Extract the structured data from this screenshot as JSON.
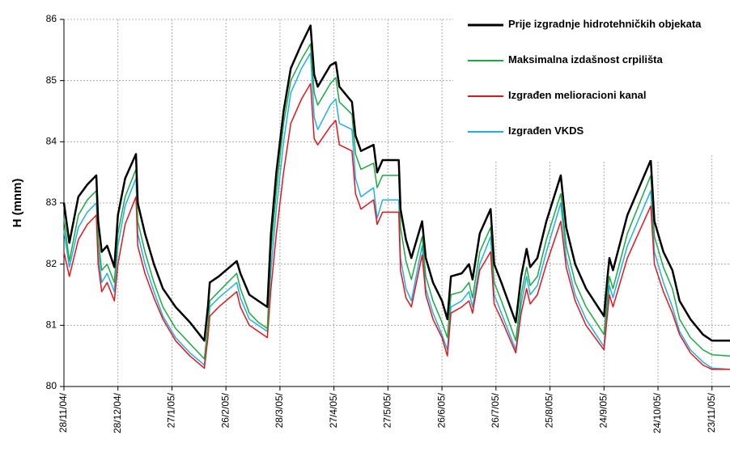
{
  "chart_data": {
    "type": "line",
    "y_label": "H (mnm)",
    "x": [
      0,
      3,
      8,
      13,
      18,
      19,
      21,
      24,
      28,
      30,
      34,
      40,
      41,
      45,
      50,
      55,
      62,
      70,
      78,
      80,
      81,
      86,
      96,
      98,
      103,
      108,
      113,
      115,
      118,
      122,
      126,
      132,
      137,
      139,
      141,
      148,
      151,
      153,
      160,
      162,
      165,
      172,
      174,
      177,
      186,
      187,
      190,
      193,
      199,
      201,
      205,
      210,
      213,
      215,
      221,
      225,
      227,
      231,
      237,
      239,
      243,
      251,
      254,
      257,
      259,
      263,
      268,
      276,
      279,
      284,
      290,
      300,
      302,
      303,
      305,
      313,
      326,
      328,
      333,
      338,
      342,
      348,
      355,
      360,
      370
    ],
    "xlim": [
      0,
      370
    ],
    "xticks": [
      {
        "value": 0,
        "label": "28/11/04/"
      },
      {
        "value": 30,
        "label": "28/12/04/"
      },
      {
        "value": 60,
        "label": "27/1/05/"
      },
      {
        "value": 90,
        "label": "26/2/05/"
      },
      {
        "value": 120,
        "label": "28/3/05/"
      },
      {
        "value": 150,
        "label": "27/4/05/"
      },
      {
        "value": 180,
        "label": "27/5/05/"
      },
      {
        "value": 210,
        "label": "26/6/05/"
      },
      {
        "value": 240,
        "label": "26/7/05/"
      },
      {
        "value": 270,
        "label": "25/8/05/"
      },
      {
        "value": 300,
        "label": "24/9/05/"
      },
      {
        "value": 330,
        "label": "24/10/05/"
      },
      {
        "value": 360,
        "label": "23/11/05/"
      }
    ],
    "ylim": [
      80,
      86
    ],
    "yticks": [
      80,
      81,
      82,
      83,
      84,
      85,
      86
    ],
    "grid": true,
    "legend": "top-right",
    "series": [
      {
        "name": "Prije izgradnje hidrotehničkih objekata",
        "color": "#000000",
        "width": 2.5,
        "values": [
          83.0,
          82.35,
          83.1,
          83.3,
          83.45,
          82.7,
          82.2,
          82.3,
          81.95,
          82.8,
          83.4,
          83.8,
          83.0,
          82.5,
          82.0,
          81.6,
          81.3,
          81.05,
          80.75,
          81.3,
          81.7,
          81.8,
          82.05,
          81.85,
          81.5,
          81.4,
          81.3,
          82.5,
          83.5,
          84.5,
          85.2,
          85.6,
          85.9,
          85.1,
          84.9,
          85.25,
          85.3,
          84.9,
          84.65,
          84.1,
          83.85,
          83.95,
          83.5,
          83.7,
          83.7,
          82.9,
          82.4,
          82.1,
          82.7,
          82.1,
          81.7,
          81.4,
          81.1,
          81.8,
          81.85,
          82.0,
          81.75,
          82.5,
          82.9,
          82.0,
          81.7,
          81.05,
          81.8,
          82.25,
          81.95,
          82.1,
          82.7,
          83.45,
          82.6,
          82.0,
          81.6,
          81.15,
          81.8,
          82.1,
          81.9,
          82.8,
          83.7,
          82.7,
          82.2,
          81.9,
          81.4,
          81.1,
          80.85,
          80.75,
          80.75
        ]
      },
      {
        "name": "Maksimalna izdašnost crpilišta",
        "color": "#1aab40",
        "width": 1.5,
        "values": [
          82.75,
          82.05,
          82.8,
          83.05,
          83.2,
          82.4,
          81.9,
          82.0,
          81.7,
          82.5,
          83.1,
          83.55,
          82.7,
          82.2,
          81.7,
          81.3,
          80.95,
          80.7,
          80.45,
          81.0,
          81.4,
          81.55,
          81.85,
          81.6,
          81.2,
          81.05,
          80.95,
          82.2,
          83.2,
          84.3,
          85.0,
          85.35,
          85.6,
          84.8,
          84.6,
          84.95,
          85.05,
          84.65,
          84.45,
          83.8,
          83.55,
          83.65,
          83.25,
          83.45,
          83.45,
          82.6,
          82.05,
          81.75,
          82.45,
          81.8,
          81.4,
          81.05,
          80.8,
          81.5,
          81.55,
          81.7,
          81.45,
          82.2,
          82.6,
          81.7,
          81.4,
          80.75,
          81.5,
          81.95,
          81.65,
          81.8,
          82.4,
          83.15,
          82.3,
          81.7,
          81.3,
          80.85,
          81.5,
          81.8,
          81.6,
          82.5,
          83.45,
          82.45,
          81.95,
          81.6,
          81.1,
          80.8,
          80.6,
          80.52,
          80.5
        ]
      },
      {
        "name": "Izgrađen melioracioni kanal",
        "color": "#e8141b",
        "width": 1.5,
        "values": [
          82.2,
          81.8,
          82.4,
          82.65,
          82.8,
          82.0,
          81.55,
          81.7,
          81.4,
          82.0,
          82.65,
          83.1,
          82.3,
          81.85,
          81.45,
          81.1,
          80.75,
          80.5,
          80.3,
          80.8,
          81.15,
          81.3,
          81.55,
          81.3,
          81.0,
          80.9,
          80.8,
          81.6,
          82.5,
          83.5,
          84.3,
          84.7,
          84.95,
          84.05,
          83.95,
          84.25,
          84.35,
          83.95,
          83.85,
          83.15,
          82.9,
          83.05,
          82.65,
          82.85,
          82.85,
          81.9,
          81.45,
          81.3,
          82.15,
          81.5,
          81.1,
          80.8,
          80.5,
          81.2,
          81.3,
          81.4,
          81.2,
          81.9,
          82.2,
          81.35,
          81.1,
          80.55,
          81.2,
          81.6,
          81.35,
          81.5,
          82.0,
          82.7,
          81.95,
          81.4,
          81.0,
          80.6,
          81.2,
          81.5,
          81.3,
          82.1,
          82.95,
          82.0,
          81.55,
          81.2,
          80.85,
          80.55,
          80.35,
          80.28,
          80.28
        ]
      },
      {
        "name": "Izgrađen VKDS",
        "color": "#1fb0e8",
        "width": 1.5,
        "values": [
          82.55,
          81.95,
          82.6,
          82.85,
          83.0,
          82.2,
          81.7,
          81.85,
          81.55,
          82.3,
          82.95,
          83.4,
          82.5,
          82.0,
          81.55,
          81.15,
          80.8,
          80.55,
          80.35,
          80.9,
          81.3,
          81.45,
          81.7,
          81.45,
          81.1,
          81.0,
          80.9,
          81.9,
          82.9,
          84.0,
          84.8,
          85.2,
          85.45,
          84.4,
          84.2,
          84.6,
          84.7,
          84.3,
          84.2,
          83.4,
          83.1,
          83.25,
          82.75,
          83.05,
          83.05,
          82.1,
          81.6,
          81.4,
          82.3,
          81.6,
          81.2,
          80.85,
          80.6,
          81.3,
          81.4,
          81.55,
          81.3,
          82.0,
          82.45,
          81.5,
          81.2,
          80.6,
          81.35,
          81.8,
          81.5,
          81.65,
          82.2,
          83.0,
          82.1,
          81.5,
          81.1,
          80.65,
          81.35,
          81.65,
          81.45,
          82.3,
          83.2,
          82.2,
          81.7,
          81.3,
          80.9,
          80.6,
          80.4,
          80.3,
          80.28
        ]
      }
    ]
  }
}
